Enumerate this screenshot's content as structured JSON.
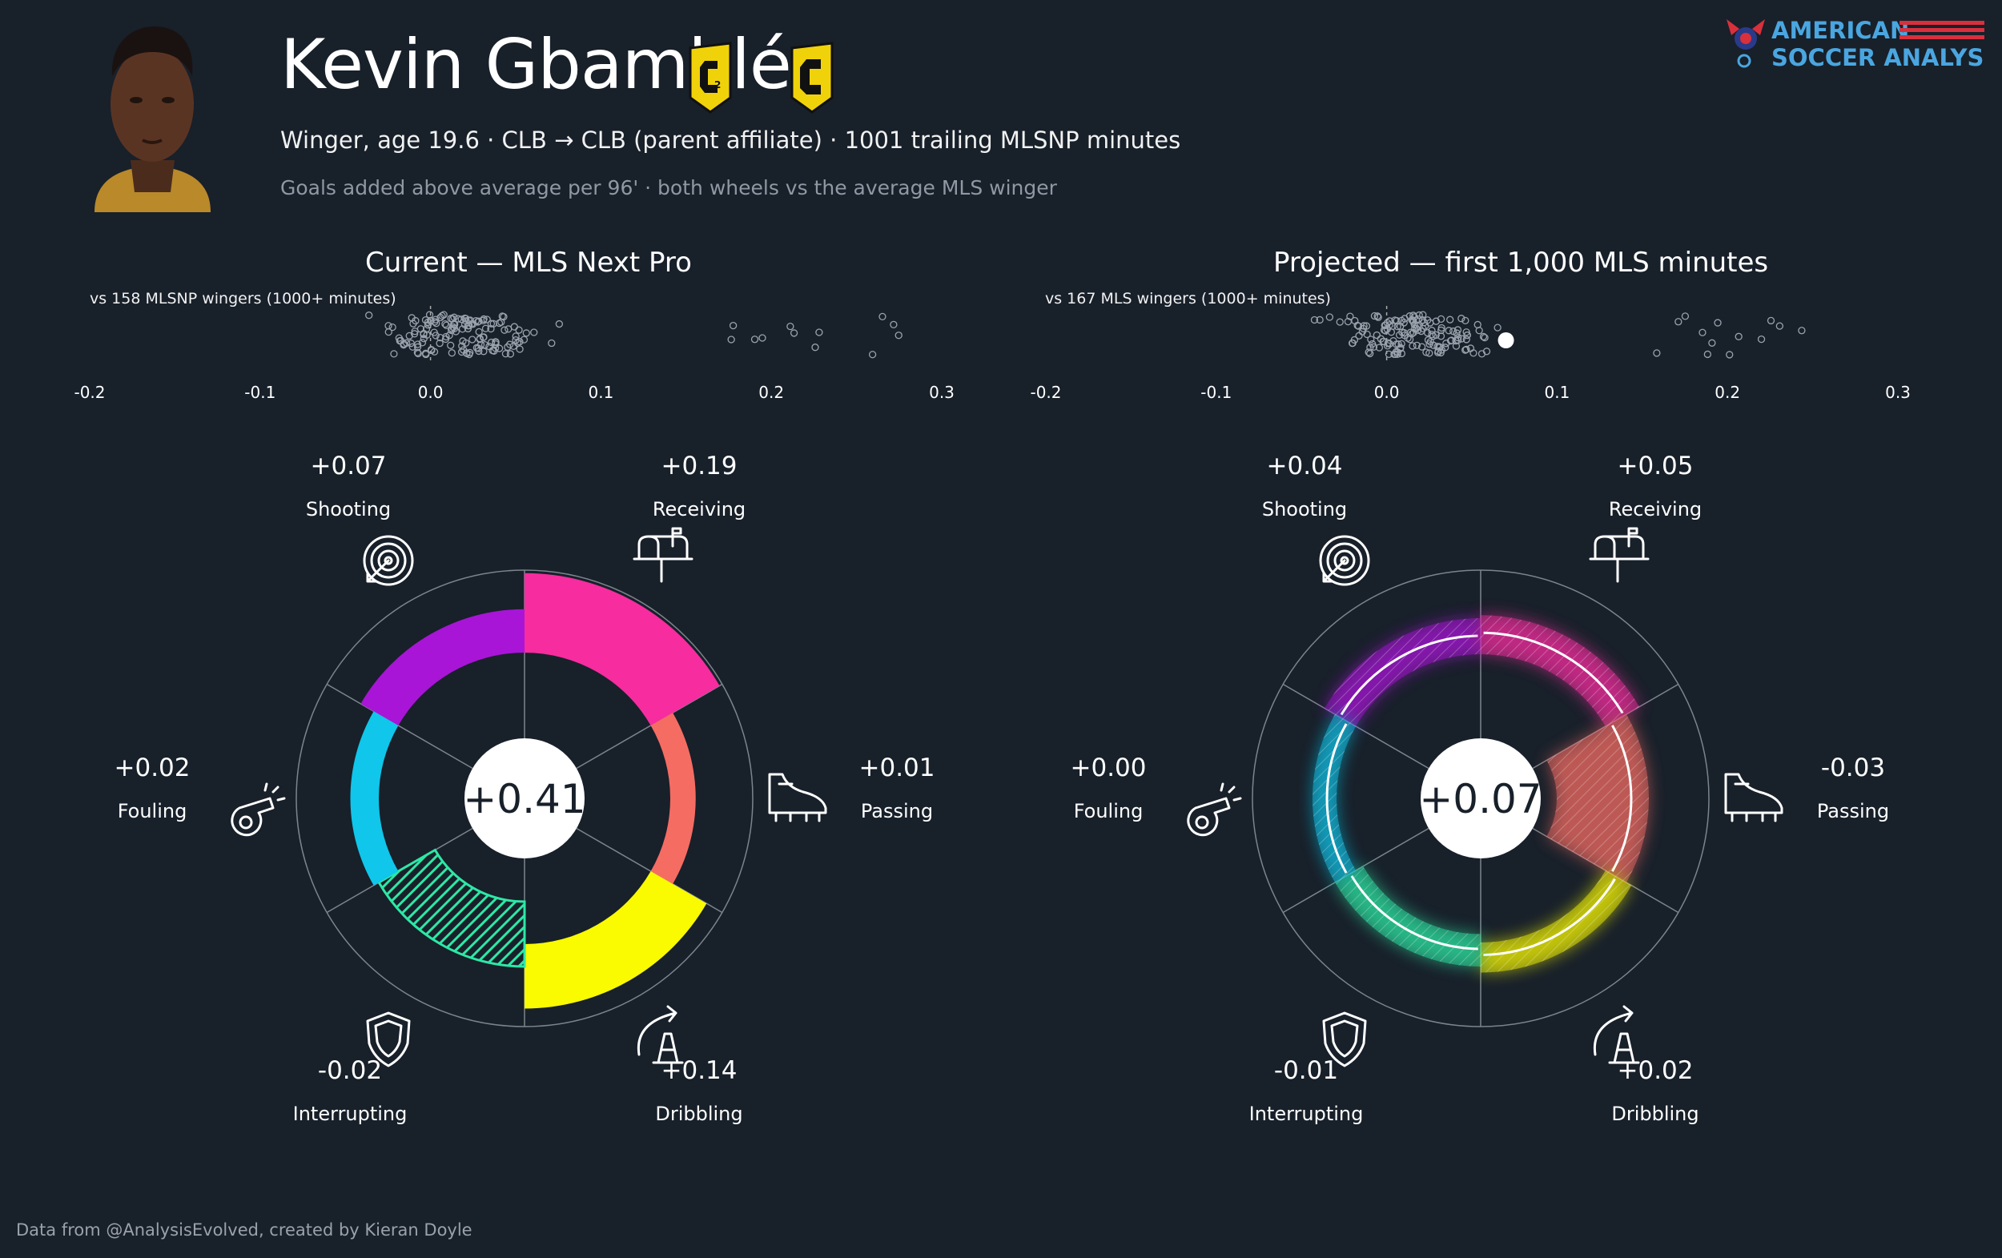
{
  "player": {
    "name": "Kevin Gbamblé",
    "subtitle": "Winger, age 19.6 · CLB → CLB (parent affiliate) · 1001 trailing MLSNP minutes",
    "caption": "Goals added above average per 96' · both wheels vs the average MLS winger"
  },
  "brand": {
    "line1": "AMERICAN",
    "line2": "SOCCER ANALYSIS",
    "accent": "#4aa6e0",
    "stripe_color": "#d9303c"
  },
  "footer": "Data from @AnalysisEvolved, created by Kieran Doyle",
  "colors": {
    "background": "#18202a",
    "Shooting": "#a815d6",
    "Receiving": "#f72c9f",
    "Passing": "#f56c63",
    "Dribbling": "#fafa00",
    "Interrupting": "#2de8a5",
    "Fouling": "#10c6ea"
  },
  "icons": [
    "target-icon",
    "mailbox-icon",
    "whistle-icon",
    "cleat-icon",
    "shield-icon",
    "cone-dribble-icon",
    "player-photo",
    "crew-2-badge",
    "crew-badge",
    "asa-logo"
  ],
  "chart_data": [
    {
      "type": "scatter",
      "id": "strip-current",
      "title": "Current — MLS Next Pro",
      "label": "vs 158 MLSNP wingers (1000+ minutes)",
      "xlim": [
        -0.2,
        0.3
      ],
      "ticks": [
        "-0.2",
        "-0.1",
        "0.0",
        "0.1",
        "0.2",
        "0.3"
      ],
      "tick_values": [
        -0.2,
        -0.1,
        0.0,
        0.1,
        0.2,
        0.3
      ],
      "n": 158,
      "highlight": null
    },
    {
      "type": "scatter",
      "id": "strip-projected",
      "title": "Projected — first 1,000 MLS minutes",
      "label": "vs 167 MLS wingers (1000+ minutes)",
      "xlim": [
        -0.2,
        0.3
      ],
      "ticks": [
        "-0.2",
        "-0.1",
        "0.0",
        "0.1",
        "0.2",
        "0.3"
      ],
      "tick_values": [
        -0.2,
        -0.1,
        0.0,
        0.1,
        0.2,
        0.3
      ],
      "n": 167,
      "highlight": 0.07
    },
    {
      "type": "pie",
      "id": "wheel-current",
      "total": "+0.41",
      "categories": [
        "Shooting",
        "Receiving",
        "Passing",
        "Dribbling",
        "Interrupting",
        "Fouling"
      ],
      "values": [
        0.07,
        0.19,
        0.01,
        0.14,
        -0.02,
        0.02
      ],
      "labels": [
        "+0.07",
        "+0.19",
        "+0.01",
        "+0.14",
        "-0.02",
        "+0.02"
      ]
    },
    {
      "type": "pie",
      "id": "wheel-projected",
      "total": "+0.07",
      "categories": [
        "Shooting",
        "Receiving",
        "Passing",
        "Dribbling",
        "Interrupting",
        "Fouling"
      ],
      "values": [
        0.04,
        0.05,
        -0.03,
        0.02,
        -0.01,
        0.0
      ],
      "labels": [
        "+0.04",
        "+0.05",
        "-0.03",
        "+0.02",
        "-0.01",
        "+0.00"
      ]
    }
  ]
}
